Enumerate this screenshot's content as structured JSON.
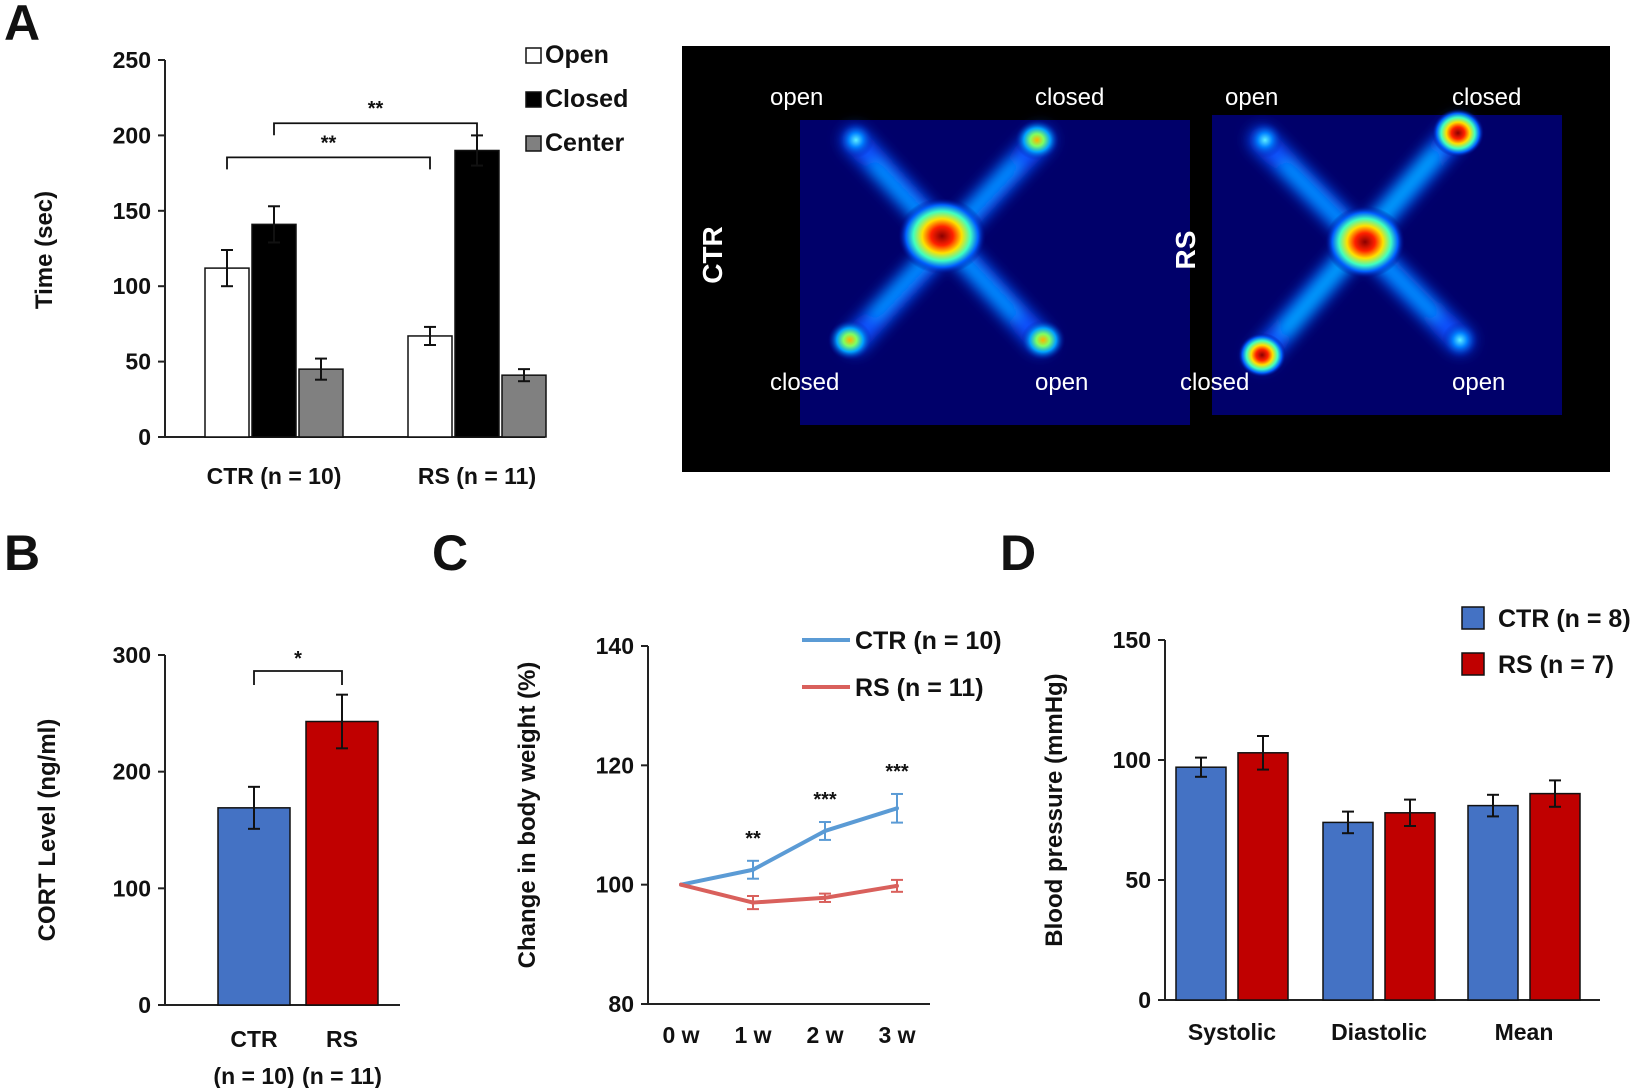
{
  "colors": {
    "ctr": "#4472C4",
    "rs": "#C00000",
    "line_ctr": "#5B9BD5",
    "line_rs": "#D9605C",
    "open": "#FFFFFF",
    "closed": "#000000",
    "center": "#808080"
  },
  "panels": {
    "A": {
      "letter": "A",
      "heatmap": {
        "labels": {
          "ctr_top_left": "open",
          "ctr_top_right": "closed",
          "ctr_bottom_left": "closed",
          "ctr_bottom_right": "open",
          "rs_top_left": "open",
          "rs_top_right": "closed",
          "rs_bottom_left": "closed",
          "rs_bottom_right": "open"
        },
        "group_ctr": "CTR",
        "group_rs": "RS"
      }
    },
    "B": {
      "letter": "B"
    },
    "C": {
      "letter": "C"
    },
    "D": {
      "letter": "D"
    }
  },
  "chart_data": [
    {
      "id": "A",
      "type": "bar",
      "ylabel": "Time (sec)",
      "ylim": [
        0,
        250
      ],
      "yticks": [
        0,
        50,
        100,
        150,
        200,
        250
      ],
      "categories": [
        "CTR (n = 10)",
        "RS (n = 11)"
      ],
      "series": [
        {
          "name": "Open",
          "values": [
            112,
            67
          ],
          "errors": [
            12,
            6
          ]
        },
        {
          "name": "Closed",
          "values": [
            141,
            190
          ],
          "errors": [
            12,
            10
          ]
        },
        {
          "name": "Center",
          "values": [
            45,
            41
          ],
          "errors": [
            7,
            4
          ]
        }
      ],
      "legend": [
        "Open",
        "Closed",
        "Center"
      ],
      "significance": [
        {
          "label": "**",
          "from": "CTR (n = 10) Open",
          "to": "RS (n = 11) Open"
        },
        {
          "label": "**",
          "from": "CTR (n = 10) Closed",
          "to": "RS (n = 11) Closed"
        }
      ]
    },
    {
      "id": "B",
      "type": "bar",
      "ylabel": "CORT Level (ng/ml)",
      "ylim": [
        0,
        300
      ],
      "yticks": [
        0,
        100,
        200,
        300
      ],
      "categories": [
        "CTR",
        "RS"
      ],
      "category_n": [
        "(n = 10)",
        "(n = 11)"
      ],
      "values": [
        169,
        243
      ],
      "errors": [
        18,
        23
      ],
      "significance": [
        {
          "label": "*"
        }
      ]
    },
    {
      "id": "C",
      "type": "line",
      "ylabel": "Change in body weight (%)",
      "ylim": [
        80,
        140
      ],
      "yticks": [
        80,
        100,
        120,
        140
      ],
      "x": [
        "0 w",
        "1 w",
        "2 w",
        "3 w"
      ],
      "series": [
        {
          "name": "CTR (n = 10)",
          "values": [
            100,
            102.5,
            109,
            112.8
          ],
          "errors": [
            0,
            1.5,
            1.5,
            2.4
          ]
        },
        {
          "name": "RS (n = 11)",
          "values": [
            100,
            97,
            97.8,
            99.8
          ],
          "errors": [
            0,
            1.1,
            0.7,
            1.0
          ]
        }
      ],
      "significance": [
        "",
        "**",
        "***",
        "***"
      ]
    },
    {
      "id": "D",
      "type": "bar",
      "ylabel": "Blood pressure (mmHg)",
      "ylim": [
        0,
        150
      ],
      "yticks": [
        0,
        50,
        100,
        150
      ],
      "categories": [
        "Systolic",
        "Diastolic",
        "Mean"
      ],
      "series": [
        {
          "name": "CTR (n = 8)",
          "values": [
            97,
            74,
            81
          ],
          "errors": [
            4,
            4.5,
            4.5
          ]
        },
        {
          "name": "RS (n = 7)",
          "values": [
            103,
            78,
            86
          ],
          "errors": [
            7,
            5.5,
            5.5
          ]
        }
      ]
    }
  ]
}
